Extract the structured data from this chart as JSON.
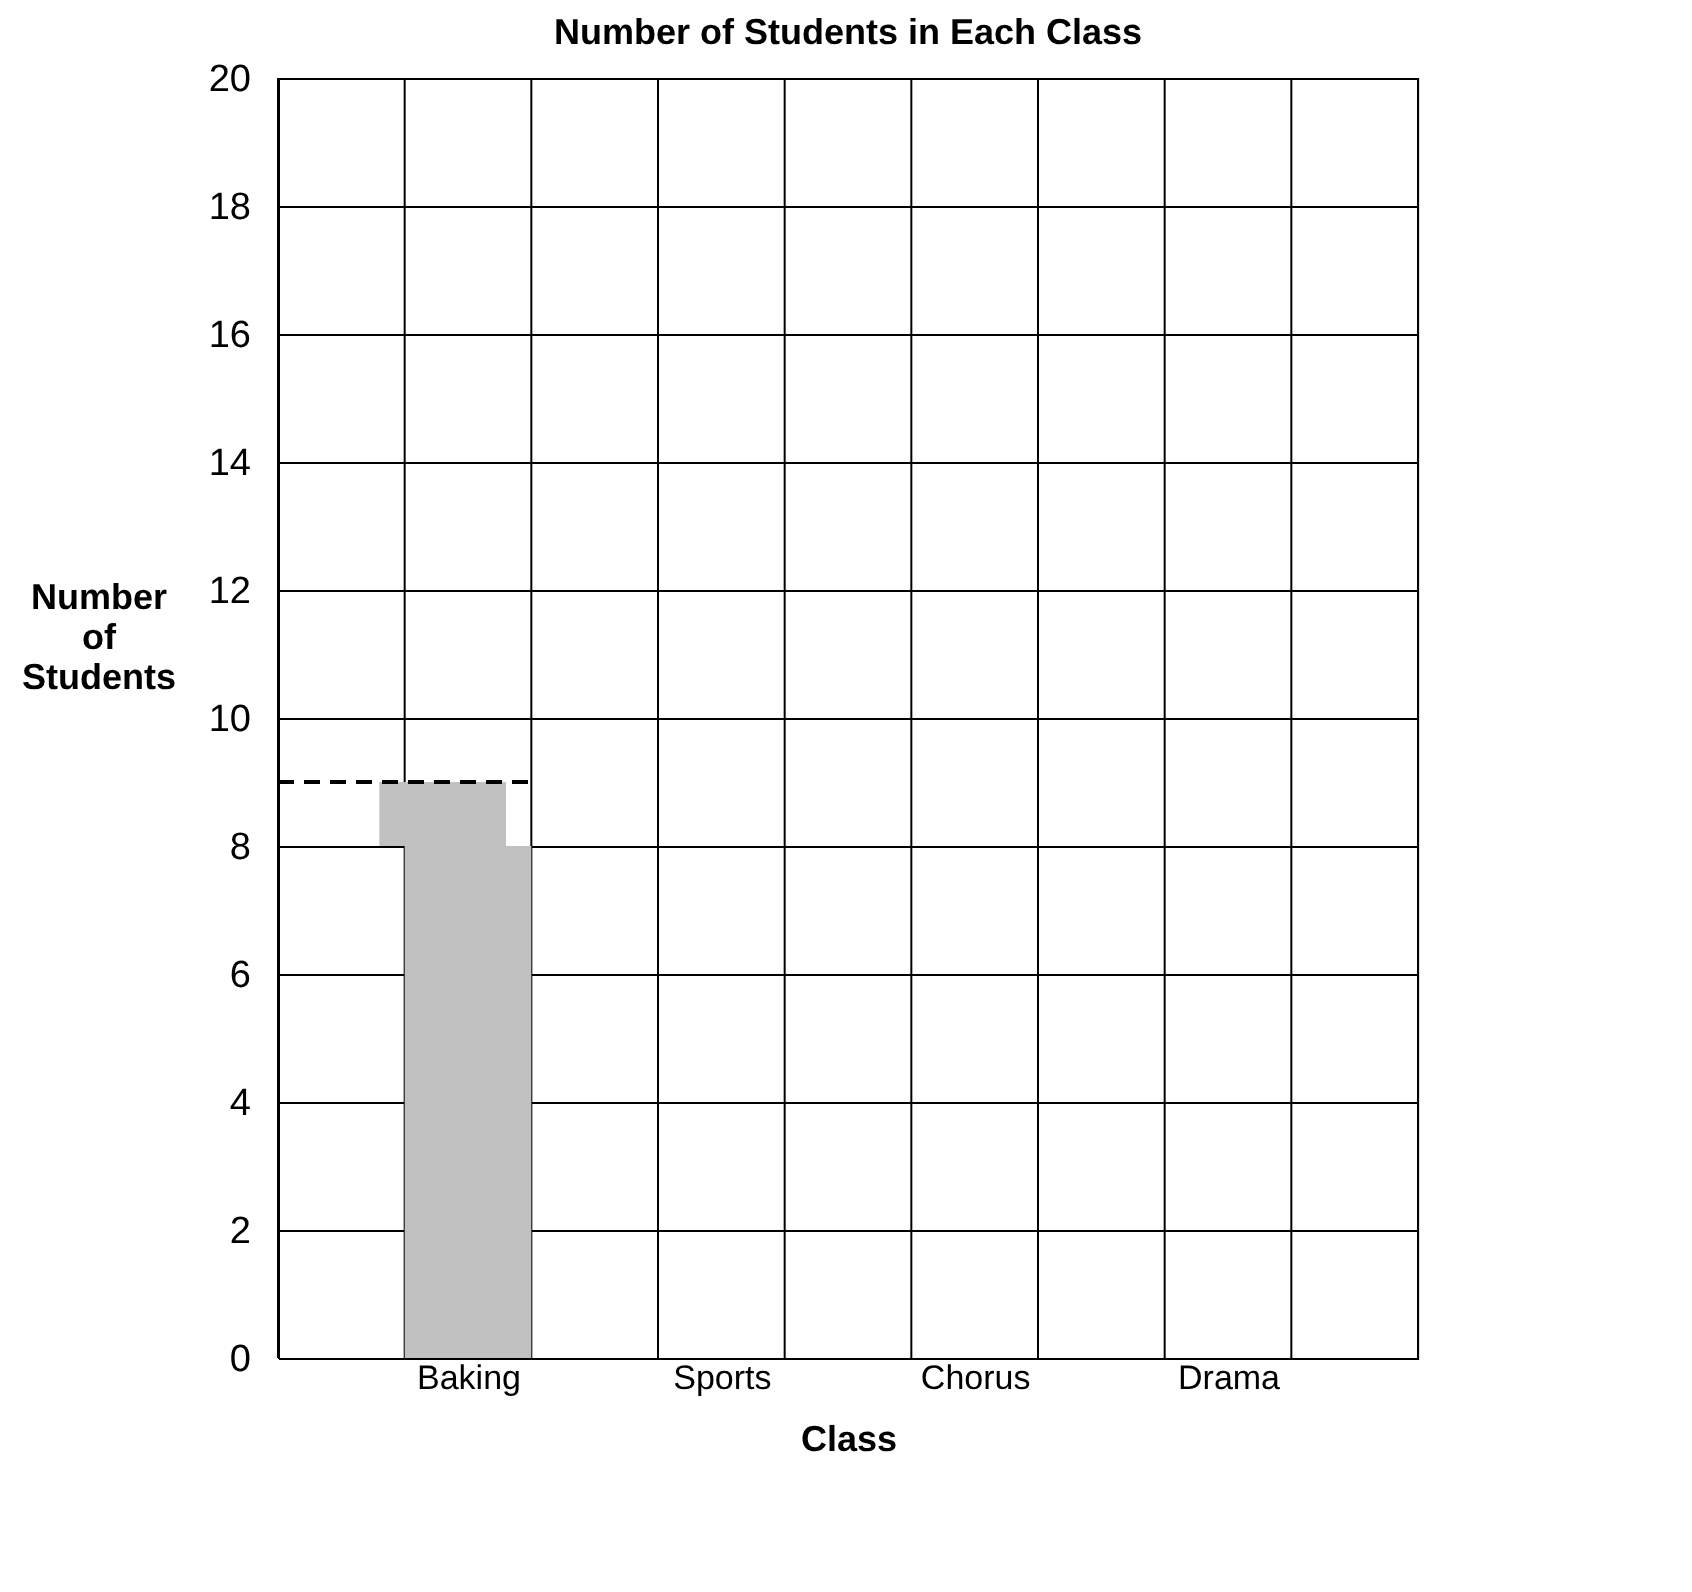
{
  "chart_data": {
    "type": "bar",
    "title": "Number of Students in Each Class",
    "xlabel": "Class",
    "ylabel": "Number of Students",
    "categories": [
      null,
      "Baking",
      null,
      "Sports",
      null,
      "Chorus",
      null,
      "Drama",
      null
    ],
    "stacked": true,
    "series": [
      {
        "color": "#c0c0c0",
        "values": [
          null,
          8,
          null,
          null,
          null,
          null,
          null,
          null,
          null
        ]
      },
      {
        "color": "#c0c0c0",
        "values": [
          null,
          1,
          null,
          null,
          null,
          null,
          null,
          null,
          null
        ]
      }
    ],
    "ref_lines": [
      {
        "axis": "y",
        "value": 9,
        "line_style": "dashed",
        "color": "#000000"
      }
    ],
    "ylim": [
      0,
      20
    ],
    "yticks": [
      0,
      2,
      4,
      6,
      8,
      10,
      12,
      14,
      16,
      18,
      20
    ],
    "grid": true
  }
}
